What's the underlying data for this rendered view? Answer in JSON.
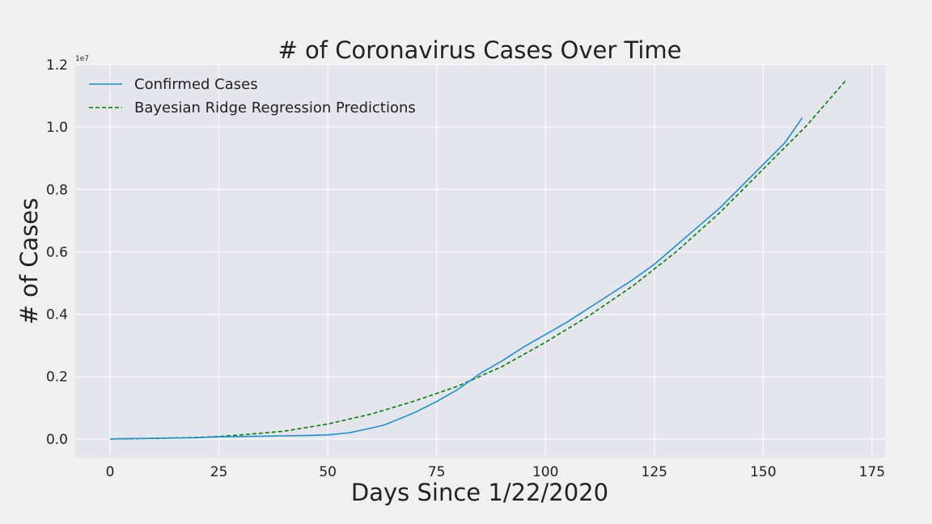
{
  "chart_data": {
    "type": "line",
    "title": "# of Coronavirus Cases Over Time",
    "xlabel": "Days Since 1/22/2020",
    "ylabel": "# of Cases",
    "y_offset_label": "1e7",
    "xlim": [
      -8,
      178
    ],
    "ylim": [
      -0.06,
      1.2
    ],
    "x_ticks": [
      0,
      25,
      50,
      75,
      100,
      125,
      150,
      175
    ],
    "x_tick_labels": [
      "0",
      "25",
      "50",
      "75",
      "100",
      "125",
      "150",
      "175"
    ],
    "y_ticks": [
      0.0,
      0.2,
      0.4,
      0.6,
      0.8,
      1.0,
      1.2
    ],
    "y_tick_labels": [
      "0.0",
      "0.2",
      "0.4",
      "0.6",
      "0.8",
      "1.0",
      "1.2"
    ],
    "grid": true,
    "legend_position": "top-left",
    "series": [
      {
        "name": "Confirmed Cases",
        "color": "#1a8fd1",
        "style": "solid",
        "points": [
          [
            0,
            0.0
          ],
          [
            10,
            0.002
          ],
          [
            20,
            0.004
          ],
          [
            25,
            0.007
          ],
          [
            30,
            0.008
          ],
          [
            40,
            0.01
          ],
          [
            45,
            0.011
          ],
          [
            50,
            0.013
          ],
          [
            55,
            0.02
          ],
          [
            60,
            0.035
          ],
          [
            63,
            0.045
          ],
          [
            66,
            0.062
          ],
          [
            70,
            0.085
          ],
          [
            75,
            0.12
          ],
          [
            80,
            0.16
          ],
          [
            85,
            0.21
          ],
          [
            90,
            0.25
          ],
          [
            95,
            0.295
          ],
          [
            100,
            0.335
          ],
          [
            105,
            0.375
          ],
          [
            110,
            0.42
          ],
          [
            115,
            0.465
          ],
          [
            120,
            0.51
          ],
          [
            125,
            0.56
          ],
          [
            130,
            0.62
          ],
          [
            135,
            0.68
          ],
          [
            140,
            0.74
          ],
          [
            145,
            0.81
          ],
          [
            150,
            0.88
          ],
          [
            155,
            0.95
          ],
          [
            159,
            1.03
          ]
        ]
      },
      {
        "name": "Bayesian Ridge Regression Predictions",
        "color": "#008000",
        "style": "dashed",
        "points": [
          [
            0,
            0.0
          ],
          [
            10,
            0.002
          ],
          [
            20,
            0.005
          ],
          [
            25,
            0.008
          ],
          [
            30,
            0.013
          ],
          [
            40,
            0.025
          ],
          [
            50,
            0.048
          ],
          [
            60,
            0.08
          ],
          [
            70,
            0.122
          ],
          [
            80,
            0.17
          ],
          [
            90,
            0.232
          ],
          [
            100,
            0.31
          ],
          [
            110,
            0.395
          ],
          [
            120,
            0.49
          ],
          [
            130,
            0.6
          ],
          [
            140,
            0.725
          ],
          [
            150,
            0.865
          ],
          [
            160,
            1.005
          ],
          [
            169,
            1.15
          ]
        ]
      }
    ]
  }
}
